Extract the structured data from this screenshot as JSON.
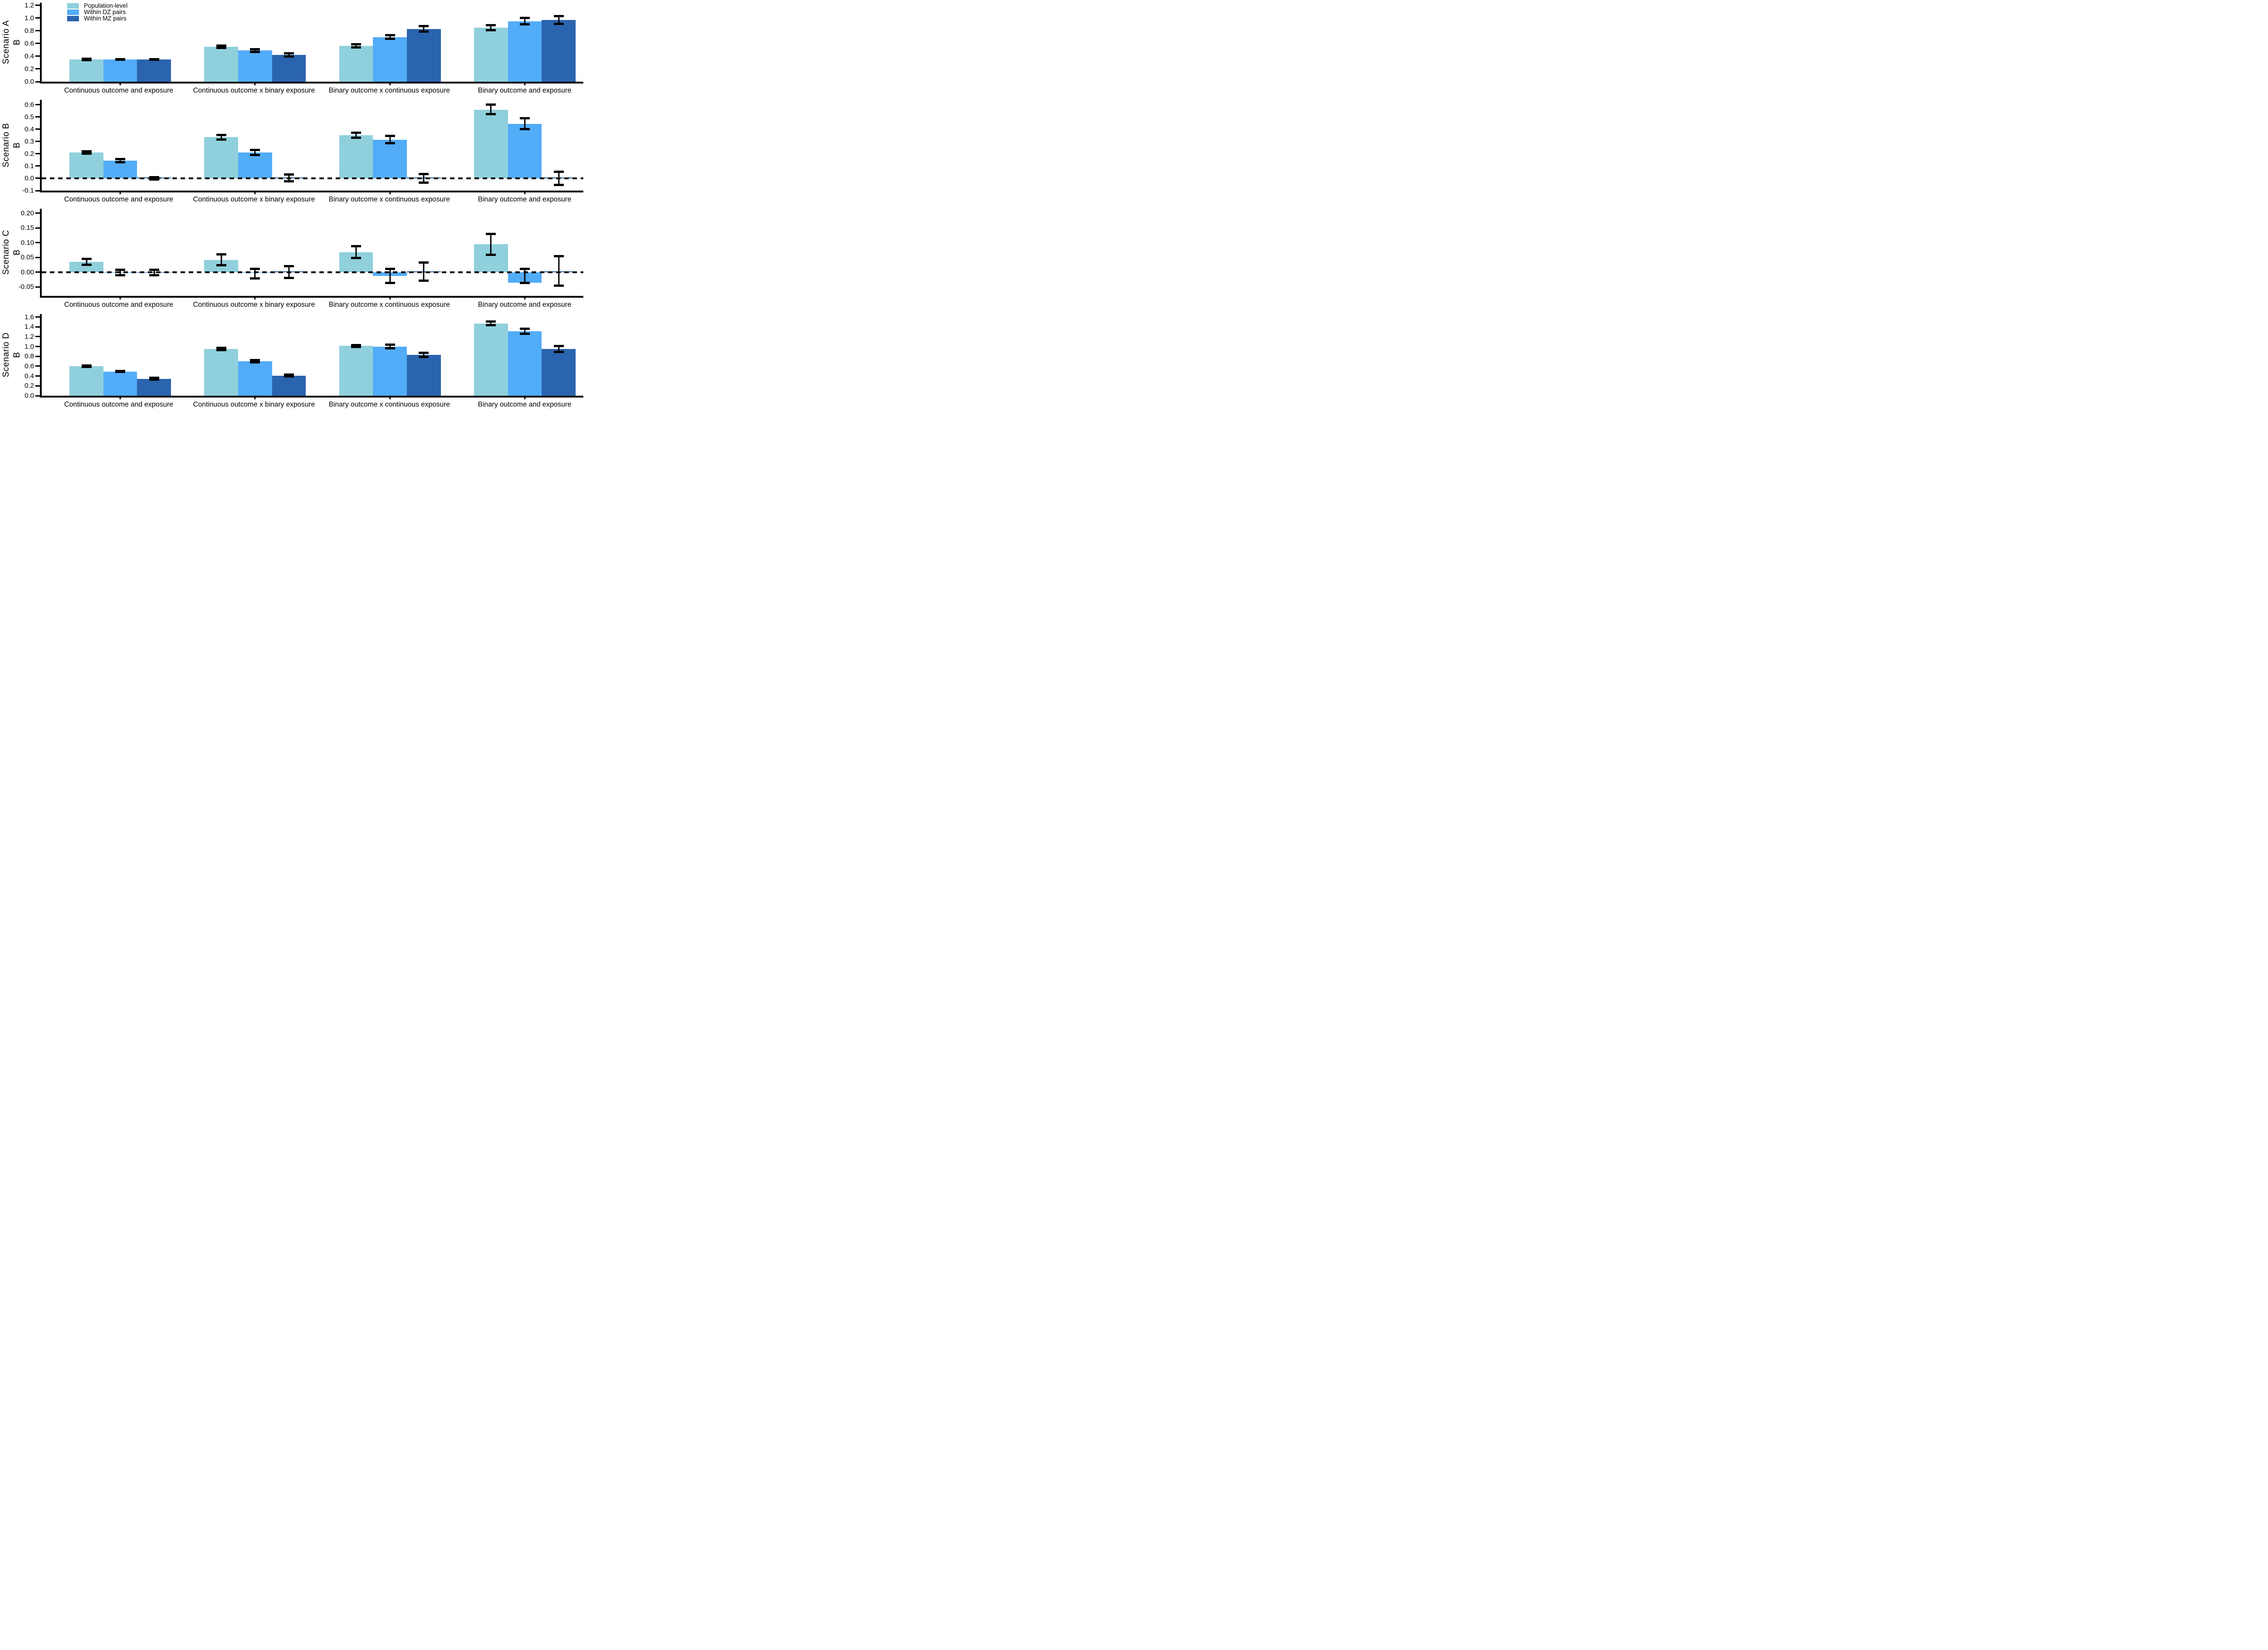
{
  "figure": {
    "background": "#ffffff"
  },
  "legend": {
    "position": "top-left-inside-first-panel",
    "items": [
      {
        "label": "Population-level",
        "color": "#8FD0DC"
      },
      {
        "label": "Within DZ pairs",
        "color": "#52ACF8"
      },
      {
        "label": "Within MZ pairs",
        "color": "#2B64AE"
      }
    ]
  },
  "chart_data": [
    {
      "type": "bar",
      "title": "Scenario A",
      "ylabel": "B",
      "ylim": [
        0,
        1.24
      ],
      "grid": false,
      "zero_line_dashed": false,
      "yticks": [
        {
          "v": 0.0,
          "label": "0.0"
        },
        {
          "v": 0.2,
          "label": "0.2"
        },
        {
          "v": 0.4,
          "label": "0.4"
        },
        {
          "v": 0.6,
          "label": "0.6"
        },
        {
          "v": 0.8,
          "label": "0.8"
        },
        {
          "v": 1.0,
          "label": "1.0"
        },
        {
          "v": 1.2,
          "label": "1.2"
        }
      ],
      "categories": [
        "Continuous outcome and exposure",
        "Continuous outcome x binary exposure",
        "Binary outcome x continuous exposure",
        "Binary outcome and exposure"
      ],
      "series": [
        {
          "name": "Population-level",
          "color": "#8FD0DC",
          "values": [
            0.35,
            0.55,
            0.56,
            0.85
          ],
          "ci_low": [
            0.34,
            0.53,
            0.535,
            0.81
          ],
          "ci_high": [
            0.36,
            0.57,
            0.585,
            0.89
          ]
        },
        {
          "name": "Within DZ pairs",
          "color": "#52ACF8",
          "values": [
            0.35,
            0.49,
            0.7,
            0.95
          ],
          "ci_low": [
            0.345,
            0.47,
            0.67,
            0.9
          ],
          "ci_high": [
            0.355,
            0.51,
            0.73,
            1.0
          ]
        },
        {
          "name": "Within MZ pairs",
          "color": "#2B64AE",
          "values": [
            0.35,
            0.42,
            0.83,
            0.97
          ],
          "ci_low": [
            0.345,
            0.395,
            0.79,
            0.91
          ],
          "ci_high": [
            0.355,
            0.445,
            0.87,
            1.03
          ]
        }
      ]
    },
    {
      "type": "bar",
      "title": "Scenario B",
      "ylabel": "B",
      "ylim": [
        -0.1,
        0.64
      ],
      "grid": false,
      "zero_line_dashed": true,
      "yticks": [
        {
          "v": -0.1,
          "label": "-0.1"
        },
        {
          "v": 0.0,
          "label": "0.0"
        },
        {
          "v": 0.1,
          "label": "0.1"
        },
        {
          "v": 0.2,
          "label": "0.2"
        },
        {
          "v": 0.3,
          "label": "0.3"
        },
        {
          "v": 0.4,
          "label": "0.4"
        },
        {
          "v": 0.5,
          "label": "0.5"
        },
        {
          "v": 0.6,
          "label": "0.6"
        }
      ],
      "categories": [
        "Continuous outcome and exposure",
        "Continuous outcome x binary exposure",
        "Binary outcome x continuous exposure",
        "Binary outcome and exposure"
      ],
      "series": [
        {
          "name": "Population-level",
          "color": "#8FD0DC",
          "values": [
            0.21,
            0.335,
            0.35,
            0.56
          ],
          "ci_low": [
            0.2,
            0.315,
            0.33,
            0.525
          ],
          "ci_high": [
            0.22,
            0.355,
            0.37,
            0.6
          ]
        },
        {
          "name": "Within DZ pairs",
          "color": "#52ACF8",
          "values": [
            0.145,
            0.21,
            0.315,
            0.445
          ],
          "ci_low": [
            0.133,
            0.19,
            0.285,
            0.4
          ],
          "ci_high": [
            0.157,
            0.23,
            0.345,
            0.49
          ]
        },
        {
          "name": "Within MZ pairs",
          "color": "#2B64AE",
          "values": [
            0.002,
            0.003,
            0.002,
            0.002
          ],
          "ci_low": [
            -0.01,
            -0.025,
            -0.035,
            -0.055
          ],
          "ci_high": [
            0.01,
            0.03,
            0.035,
            0.055
          ]
        }
      ]
    },
    {
      "type": "bar",
      "title": "Scenario C",
      "ylabel": "B",
      "ylim": [
        -0.08,
        0.215
      ],
      "grid": false,
      "zero_line_dashed": true,
      "yticks": [
        {
          "v": -0.05,
          "label": "-0.05"
        },
        {
          "v": 0.0,
          "label": "0.00"
        },
        {
          "v": 0.05,
          "label": "0.05"
        },
        {
          "v": 0.1,
          "label": "0.10"
        },
        {
          "v": 0.15,
          "label": "0.15"
        },
        {
          "v": 0.2,
          "label": "0.20"
        }
      ],
      "categories": [
        "Continuous outcome and exposure",
        "Continuous outcome x binary exposure",
        "Binary outcome x continuous exposure",
        "Binary outcome and exposure"
      ],
      "series": [
        {
          "name": "Population-level",
          "color": "#8FD0DC",
          "values": [
            0.035,
            0.042,
            0.068,
            0.095
          ],
          "ci_low": [
            0.026,
            0.024,
            0.049,
            0.059
          ],
          "ci_high": [
            0.045,
            0.061,
            0.088,
            0.13
          ]
        },
        {
          "name": "Within DZ pairs",
          "color": "#52ACF8",
          "values": [
            -0.001,
            -0.002,
            -0.012,
            -0.036
          ],
          "ci_low": [
            -0.01,
            -0.021,
            -0.036,
            -0.036
          ],
          "ci_high": [
            0.008,
            0.011,
            0.011,
            0.012
          ]
        },
        {
          "name": "Within MZ pairs",
          "color": "#2B64AE",
          "values": [
            -0.001,
            0.001,
            0.002,
            0.002
          ],
          "ci_low": [
            -0.01,
            -0.019,
            -0.028,
            -0.045
          ],
          "ci_high": [
            0.008,
            0.021,
            0.033,
            0.055
          ]
        }
      ]
    },
    {
      "type": "bar",
      "title": "Scenario D",
      "ylabel": "B",
      "ylim": [
        0,
        1.66
      ],
      "grid": false,
      "zero_line_dashed": false,
      "yticks": [
        {
          "v": 0.0,
          "label": "0.0"
        },
        {
          "v": 0.2,
          "label": "0.2"
        },
        {
          "v": 0.4,
          "label": "0.4"
        },
        {
          "v": 0.6,
          "label": "0.6"
        },
        {
          "v": 0.8,
          "label": "0.8"
        },
        {
          "v": 1.0,
          "label": "1.0"
        },
        {
          "v": 1.2,
          "label": "1.2"
        },
        {
          "v": 1.4,
          "label": "1.4"
        },
        {
          "v": 1.6,
          "label": "1.6"
        }
      ],
      "categories": [
        "Continuous outcome and exposure",
        "Continuous outcome x binary exposure",
        "Binary outcome x continuous exposure",
        "Binary outcome and exposure"
      ],
      "series": [
        {
          "name": "Population-level",
          "color": "#8FD0DC",
          "values": [
            0.6,
            0.95,
            1.01,
            1.47
          ],
          "ci_low": [
            0.59,
            0.93,
            0.99,
            1.43
          ],
          "ci_high": [
            0.61,
            0.97,
            1.03,
            1.51
          ]
        },
        {
          "name": "Within DZ pairs",
          "color": "#52ACF8",
          "values": [
            0.49,
            0.7,
            1.0,
            1.31
          ],
          "ci_low": [
            0.48,
            0.68,
            0.965,
            1.26
          ],
          "ci_high": [
            0.5,
            0.72,
            1.035,
            1.36
          ]
        },
        {
          "name": "Within MZ pairs",
          "color": "#2B64AE",
          "values": [
            0.345,
            0.41,
            0.83,
            0.95
          ],
          "ci_low": [
            0.33,
            0.39,
            0.79,
            0.89
          ],
          "ci_high": [
            0.36,
            0.43,
            0.87,
            1.01
          ]
        }
      ]
    }
  ]
}
